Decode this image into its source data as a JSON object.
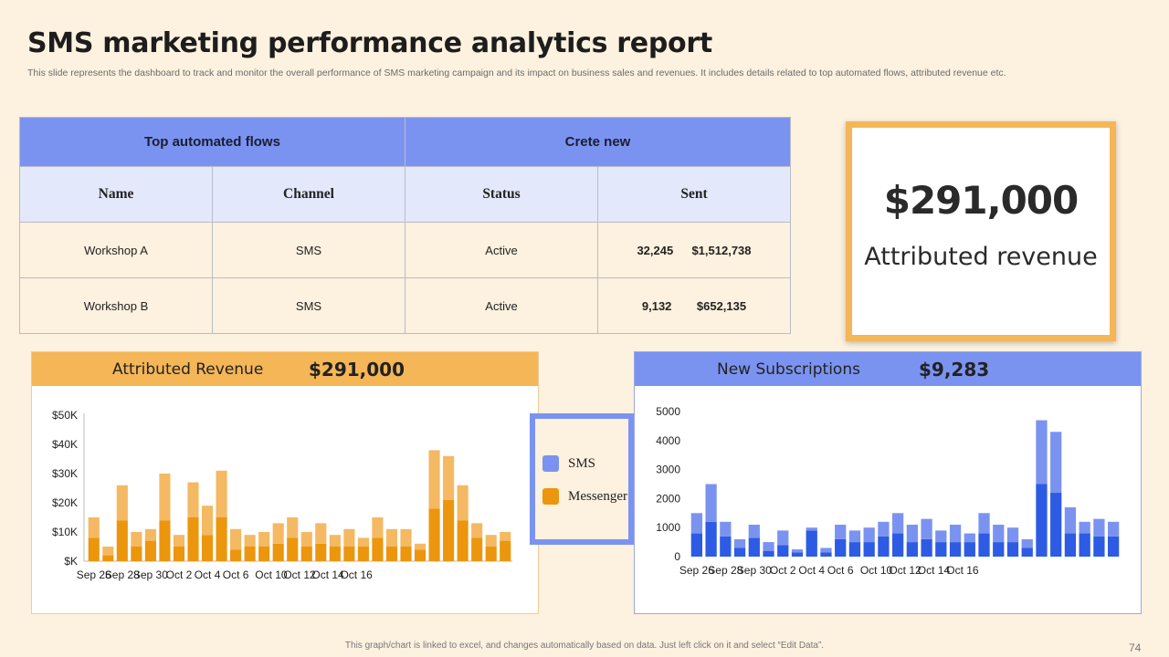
{
  "title": "SMS marketing performance analytics report",
  "subtitle": "This slide represents the dashboard to track and monitor the overall performance of SMS marketing campaign and its impact on business sales and revenues. It includes details related to top automated flows, attributed revenue etc.",
  "flows_table": {
    "header_left": "Top automated flows",
    "header_right": "Crete new",
    "columns": [
      "Name",
      "Channel",
      "Status",
      "Sent"
    ],
    "rows": [
      {
        "name": "Workshop A",
        "channel": "SMS",
        "status": "Active",
        "sent": "32,245",
        "revenue": "$1,512,738"
      },
      {
        "name": "Workshop B",
        "channel": "SMS",
        "status": "Active",
        "sent": "9,132",
        "revenue": "$652,135"
      }
    ]
  },
  "kpi": {
    "value": "$291,000",
    "label": "Attributed revenue"
  },
  "revenue_panel": {
    "title": "Attributed Revenue",
    "value": "$291,000"
  },
  "subs_panel": {
    "title": "New Subscriptions",
    "value": "$9,283"
  },
  "legend": [
    {
      "label": "SMS",
      "color": "#7b93f0"
    },
    {
      "label": "Messenger",
      "color": "#eb960d"
    }
  ],
  "chart_data": [
    {
      "type": "bar",
      "stacked": true,
      "x_tick_labels": [
        "Sep 26",
        "Sep 28",
        "Sep 30",
        "Oct 2",
        "Oct 4",
        "Oct 6",
        "Oct 10",
        "Oct 12",
        "Oct 14",
        "Oct 16"
      ],
      "y_tick_labels": [
        "$K",
        "$10K",
        "$20K",
        "$30K",
        "$40K",
        "$50K"
      ],
      "ylim": [
        0,
        50
      ],
      "grid": false,
      "colors": {
        "dark": "#eb960d",
        "light": "#f4b962"
      },
      "series": [
        {
          "values": [
            8,
            2,
            14,
            5,
            7,
            14,
            5,
            15,
            9,
            15,
            4,
            5,
            5,
            6,
            8,
            5,
            6,
            5,
            5,
            5,
            8,
            5,
            5,
            4,
            18,
            21,
            14,
            8,
            5,
            7
          ]
        },
        {
          "values": [
            7,
            3,
            12,
            5,
            4,
            16,
            4,
            12,
            10,
            16,
            7,
            4,
            5,
            7,
            7,
            5,
            7,
            4,
            6,
            3,
            7,
            6,
            6,
            2,
            20,
            15,
            12,
            5,
            4,
            3
          ]
        }
      ]
    },
    {
      "type": "bar",
      "stacked": true,
      "x_tick_labels": [
        "Sep 26",
        "Sep 28",
        "Sep 30",
        "Oct 2",
        "Oct 4",
        "Oct 6",
        "Oct 10",
        "Oct 12",
        "Oct 14",
        "Oct 16"
      ],
      "y_tick_labels": [
        "0",
        "1000",
        "2000",
        "3000",
        "4000",
        "5000"
      ],
      "ylim": [
        0,
        5000
      ],
      "grid": false,
      "colors": {
        "dark": "#2d5be3",
        "light": "#7b93f0"
      },
      "series": [
        {
          "values": [
            800,
            1200,
            700,
            300,
            650,
            200,
            400,
            150,
            900,
            150,
            600,
            500,
            500,
            700,
            800,
            500,
            600,
            500,
            500,
            500,
            800,
            500,
            500,
            300,
            2500,
            2200,
            800,
            800,
            700,
            700
          ]
        },
        {
          "values": [
            700,
            1300,
            500,
            300,
            450,
            300,
            500,
            100,
            100,
            150,
            500,
            400,
            500,
            500,
            700,
            600,
            700,
            400,
            600,
            300,
            700,
            600,
            500,
            300,
            2200,
            2100,
            900,
            400,
            600,
            500
          ]
        }
      ]
    }
  ],
  "footer": "This graph/chart is linked to excel,  and changes automatically based on data. Just left click on it and select “Edit Data”.",
  "page_number": "74"
}
